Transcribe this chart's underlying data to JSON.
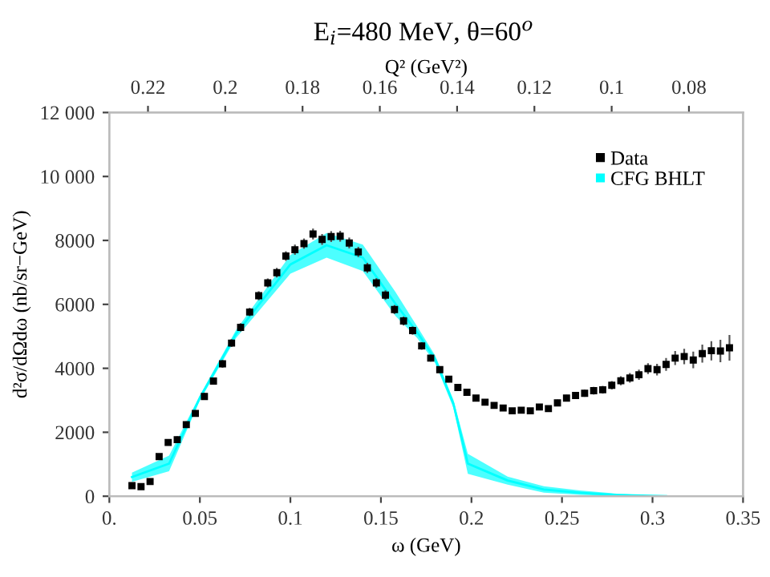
{
  "chart_data": {
    "type": "scatter",
    "title": "E$_{i}$=480 MeV, θ=60$^{o}$",
    "xlabel": "ω (GeV)",
    "ylabel": "d²σ/dΩdω (nb/sr−GeV)",
    "x2label": "Q² (GeV²)",
    "xlim": [
      0,
      0.35
    ],
    "xticks": [
      {
        "value": 0,
        "label": "0."
      },
      0.05,
      0.1,
      0.15,
      0.2,
      0.25,
      0.3,
      0.35
    ],
    "x2lim": [
      0.23,
      0.066
    ],
    "x2ticks": [
      0.22,
      0.2,
      0.18,
      0.16,
      0.14,
      0.12,
      0.1,
      0.08
    ],
    "ylim": [
      0,
      12000
    ],
    "yticks": [
      0,
      2000,
      4000,
      6000,
      8000,
      {
        "value": 10000,
        "label": "10 000"
      },
      {
        "value": 12000,
        "label": "12 000"
      }
    ],
    "legend": "top right",
    "grid": false,
    "series": [
      {
        "name": "Data",
        "marker": "square",
        "color": "#000000",
        "x": [
          0.0125,
          0.0175,
          0.0225,
          0.0275,
          0.0325,
          0.0375,
          0.0425,
          0.0475,
          0.0525,
          0.0575,
          0.0625,
          0.0675,
          0.0725,
          0.0775,
          0.0825,
          0.0875,
          0.0925,
          0.0975,
          0.1025,
          0.1075,
          0.1125,
          0.1175,
          0.1225,
          0.1275,
          0.1325,
          0.1375,
          0.1425,
          0.1475,
          0.1525,
          0.1575,
          0.1625,
          0.1675,
          0.1725,
          0.1775,
          0.1825,
          0.1875,
          0.1925,
          0.1975,
          0.2025,
          0.2075,
          0.2125,
          0.2175,
          0.2225,
          0.2275,
          0.2325,
          0.2375,
          0.2425,
          0.2475,
          0.2525,
          0.2575,
          0.2625,
          0.2675,
          0.2725,
          0.2775,
          0.2825,
          0.2875,
          0.2925,
          0.2975,
          0.3025,
          0.3075,
          0.3125,
          0.3175,
          0.3225,
          0.3275,
          0.3325,
          0.3375,
          0.3425
        ],
        "values": [
          330,
          300,
          460,
          1240,
          1680,
          1770,
          2240,
          2590,
          3120,
          3600,
          4140,
          4790,
          5280,
          5760,
          6270,
          6670,
          6990,
          7510,
          7710,
          7900,
          8200,
          8030,
          8120,
          8130,
          7920,
          7640,
          7140,
          6670,
          6290,
          5840,
          5480,
          5180,
          4700,
          4320,
          3960,
          3660,
          3400,
          3250,
          3070,
          2940,
          2840,
          2760,
          2670,
          2690,
          2670,
          2790,
          2740,
          2920,
          3070,
          3150,
          3220,
          3300,
          3330,
          3470,
          3610,
          3700,
          3800,
          3990,
          3960,
          4120,
          4320,
          4370,
          4260,
          4460,
          4550,
          4540,
          4640
        ],
        "errors": [
          60,
          60,
          70,
          80,
          90,
          100,
          100,
          100,
          110,
          110,
          120,
          120,
          130,
          130,
          140,
          140,
          150,
          150,
          160,
          160,
          170,
          170,
          170,
          170,
          170,
          160,
          160,
          150,
          150,
          140,
          140,
          130,
          120,
          110,
          100,
          100,
          90,
          90,
          80,
          80,
          80,
          80,
          80,
          80,
          80,
          90,
          90,
          100,
          100,
          100,
          110,
          120,
          120,
          130,
          140,
          150,
          160,
          170,
          180,
          200,
          220,
          240,
          260,
          280,
          300,
          350,
          400
        ]
      },
      {
        "name": "CFG BHLT",
        "type": "line",
        "color": "#00ffff",
        "x": [
          0.0125,
          0.033,
          0.05,
          0.07,
          0.1,
          0.12,
          0.14,
          0.158,
          0.17,
          0.18,
          0.19,
          0.198,
          0.22,
          0.24,
          0.26,
          0.28,
          0.3075
        ],
        "values": [
          600,
          1020,
          3080,
          5080,
          7250,
          7850,
          7460,
          6020,
          5130,
          4280,
          2900,
          1020,
          490,
          210,
          110,
          40,
          0
        ],
        "lower": [
          450,
          780,
          3000,
          4950,
          6960,
          7460,
          7040,
          5640,
          4950,
          4160,
          2770,
          700,
          360,
          110,
          40,
          10,
          0
        ],
        "upper": [
          740,
          1270,
          3150,
          5200,
          7540,
          8230,
          7870,
          6390,
          5310,
          4400,
          3020,
          1330,
          610,
          310,
          180,
          80,
          0
        ]
      }
    ]
  }
}
